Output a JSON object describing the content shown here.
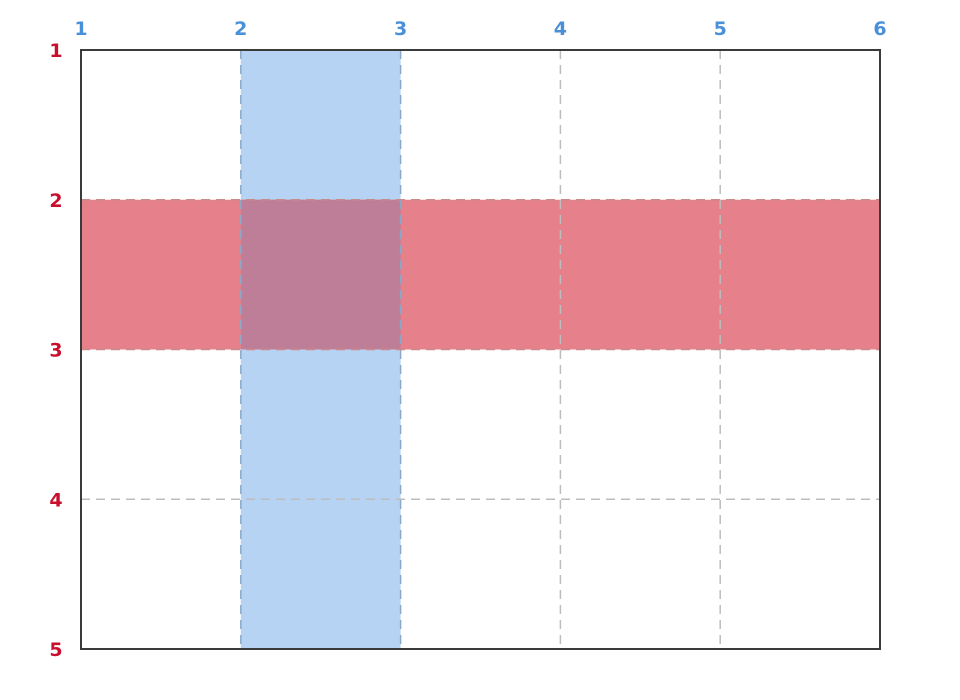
{
  "diagram": {
    "column_lines": [
      "1",
      "2",
      "3",
      "4",
      "5",
      "6"
    ],
    "row_lines": [
      "1",
      "2",
      "3",
      "4",
      "5"
    ],
    "highlighted_column": {
      "start_line": 2,
      "end_line": 3,
      "color": "#b6d3f3"
    },
    "highlighted_row": {
      "start_line": 2,
      "end_line": 3,
      "color": "#e6808b"
    },
    "overlap_color": "#bf7e98",
    "column_label_color": "#4a90d9",
    "row_label_color": "#c8102e",
    "grid_line_color": "#bdbdbd",
    "frame_color": "#3a3a3a"
  }
}
